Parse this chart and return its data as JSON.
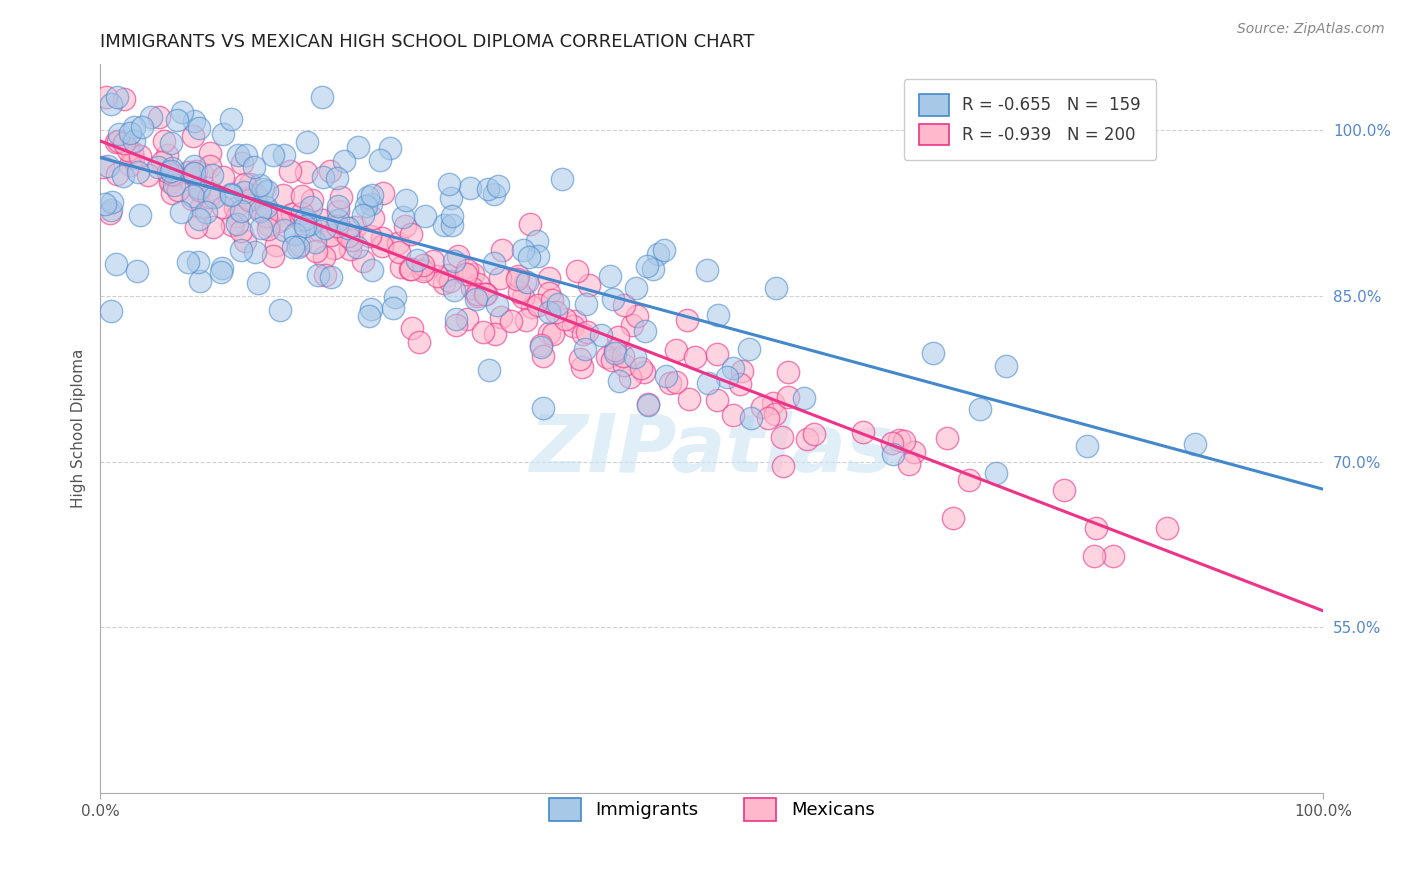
{
  "title": "IMMIGRANTS VS MEXICAN HIGH SCHOOL DIPLOMA CORRELATION CHART",
  "source_text": "Source: ZipAtlas.com",
  "ylabel": "High School Diploma",
  "watermark": "ZIPatlas",
  "legend_blue_r": "R = -0.655",
  "legend_blue_n": "N =  159",
  "legend_pink_r": "R = -0.939",
  "legend_pink_n": "N = 200",
  "blue_color": "#a8c8e8",
  "pink_color": "#ffb8cc",
  "blue_line_color": "#4488cc",
  "pink_line_color": "#ee3388",
  "xmin": 0.0,
  "xmax": 1.0,
  "ymin": 0.4,
  "ymax": 1.06,
  "blue_slope": -0.3,
  "blue_intercept": 0.975,
  "pink_slope": -0.425,
  "pink_intercept": 0.99,
  "blue_N": 159,
  "pink_N": 200,
  "title_fontsize": 13,
  "label_fontsize": 11,
  "tick_fontsize": 11,
  "legend_fontsize": 12,
  "source_fontsize": 10,
  "yticks": [
    0.55,
    0.7,
    0.85,
    1.0
  ],
  "ytick_labels": [
    "55.0%",
    "70.0%",
    "85.0%",
    "100.0%"
  ],
  "xticks": [
    0.0,
    1.0
  ],
  "xtick_labels": [
    "0.0%",
    "100.0%"
  ]
}
